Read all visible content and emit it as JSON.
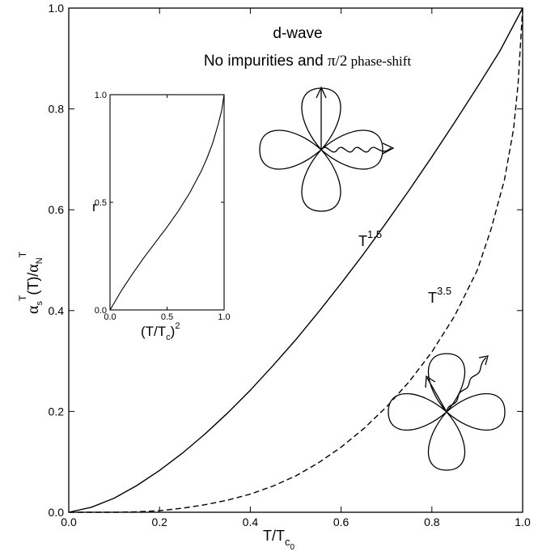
{
  "chart_data": [
    {
      "type": "line",
      "title": "d-wave",
      "subtitle_prefix": "No impurities and ",
      "subtitle_symbol": "π/2",
      "subtitle_suffix": " phase-shift",
      "xlabel": {
        "base": "T/T",
        "sub": "c",
        "subsub": "0"
      },
      "ylabel": {
        "alpha1": "α",
        "sub1": "s",
        "sup1": "T",
        "mid": "(T)/",
        "alpha2": "α",
        "sub2": "N",
        "sup2": "T"
      },
      "xlim": [
        0,
        1
      ],
      "ylim": [
        0,
        1
      ],
      "xticks": [
        "0.0",
        "0.2",
        "0.4",
        "0.6",
        "0.8",
        "1.0"
      ],
      "yticks": [
        "0.0",
        "0.2",
        "0.4",
        "0.6",
        "0.8",
        "1.0"
      ],
      "series": [
        {
          "label_base": "T",
          "label_sup": "1.5",
          "style": "solid",
          "x": [
            0,
            0.05,
            0.1,
            0.15,
            0.2,
            0.25,
            0.3,
            0.35,
            0.4,
            0.45,
            0.5,
            0.55,
            0.6,
            0.65,
            0.7,
            0.75,
            0.8,
            0.85,
            0.9,
            0.95,
            1.0
          ],
          "y": [
            0,
            0.01,
            0.028,
            0.053,
            0.083,
            0.117,
            0.155,
            0.197,
            0.242,
            0.291,
            0.342,
            0.397,
            0.454,
            0.513,
            0.575,
            0.639,
            0.705,
            0.773,
            0.843,
            0.915,
            1.0
          ]
        },
        {
          "label_base": "T",
          "label_sup": "3.5",
          "style": "dashed",
          "x": [
            0,
            0.1,
            0.15,
            0.2,
            0.25,
            0.3,
            0.35,
            0.4,
            0.45,
            0.5,
            0.55,
            0.6,
            0.65,
            0.7,
            0.75,
            0.8,
            0.85,
            0.9,
            0.93,
            0.96,
            0.98,
            0.99,
            1.0
          ],
          "y": [
            0,
            0,
            0.001,
            0.003,
            0.008,
            0.015,
            0.024,
            0.036,
            0.052,
            0.072,
            0.098,
            0.129,
            0.166,
            0.209,
            0.259,
            0.318,
            0.389,
            0.48,
            0.56,
            0.66,
            0.76,
            0.85,
            1.0
          ]
        }
      ]
    },
    {
      "type": "line",
      "title": "",
      "ylabel": "r",
      "xlabel": {
        "base": "(T/T",
        "sub": "c",
        "tail": ")",
        "sup": "2"
      },
      "xlim": [
        0,
        1
      ],
      "ylim": [
        0,
        1
      ],
      "xticks": [
        "0.0",
        "0.5",
        "1.0"
      ],
      "yticks": [
        "0.0",
        "0.5",
        "1.0"
      ],
      "series": [
        {
          "style": "solid",
          "x": [
            0,
            0.05,
            0.1,
            0.2,
            0.3,
            0.4,
            0.5,
            0.6,
            0.7,
            0.8,
            0.85,
            0.9,
            0.95,
            0.98,
            1.0
          ],
          "y": [
            0,
            0.045,
            0.09,
            0.17,
            0.245,
            0.315,
            0.385,
            0.46,
            0.545,
            0.645,
            0.705,
            0.775,
            0.865,
            0.93,
            1.0
          ]
        }
      ]
    }
  ]
}
